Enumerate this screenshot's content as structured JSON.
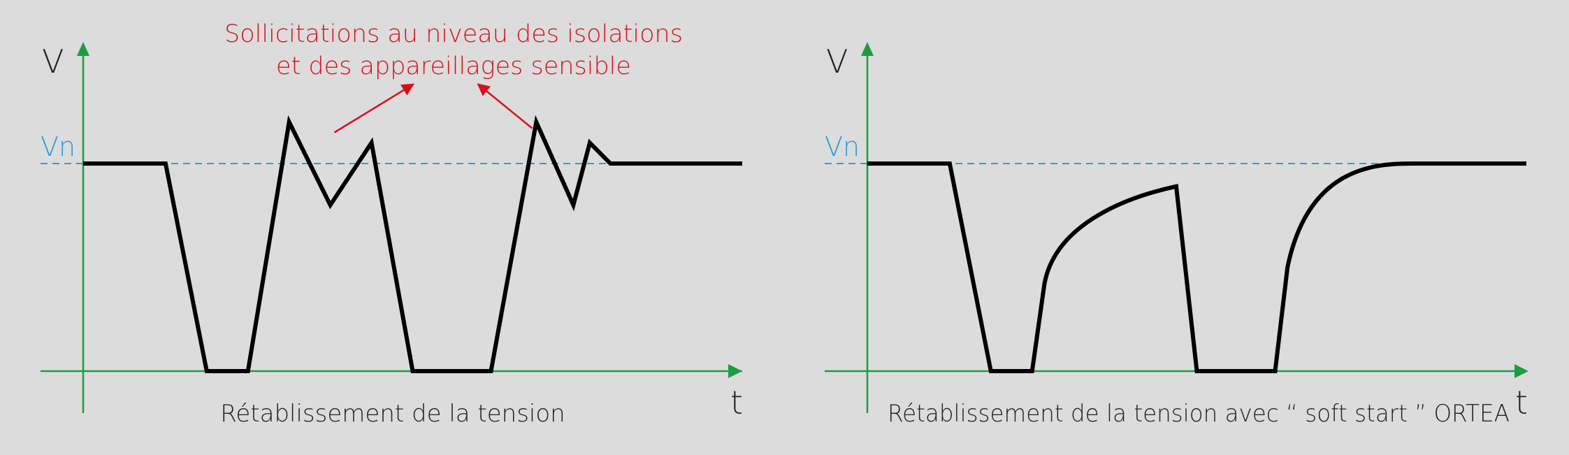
{
  "colors": {
    "background": "#dcdcdc",
    "axis": "#1a9e3f",
    "reference_line": "#2a9fd6",
    "signal": "#000000",
    "annotation": "#d8101e",
    "text": "#222222"
  },
  "chart_data": [
    {
      "type": "line",
      "id": "left",
      "ylabel": "V",
      "xlabel": "t",
      "reference_label": "Vn",
      "reference_value": 1.0,
      "caption": "Rétablissement de la tension",
      "xlim": [
        0,
        16
      ],
      "ylim": [
        0,
        1.55
      ],
      "segments": [
        {
          "shape": "line",
          "points": [
            [
              0,
              1.0
            ],
            [
              2.0,
              1.0
            ],
            [
              3.0,
              0.0
            ],
            [
              4.0,
              0.0
            ],
            [
              5.0,
              1.2
            ],
            [
              6.0,
              0.8
            ],
            [
              7.0,
              1.1
            ],
            [
              8.0,
              0.0
            ],
            [
              9.9,
              0.0
            ],
            [
              11.0,
              1.2
            ],
            [
              11.9,
              0.8
            ],
            [
              12.3,
              1.1
            ],
            [
              12.8,
              1.0
            ],
            [
              16.0,
              1.0
            ]
          ]
        }
      ],
      "annotation": {
        "text_lines": [
          "Sollicitations au niveau des isolations",
          "et des appareillages sensible"
        ],
        "arrows": [
          {
            "from": [
              6.1,
              1.15
            ],
            "to": [
              8.0,
              1.38
            ]
          },
          {
            "from": [
              10.9,
              1.17
            ],
            "to": [
              9.6,
              1.38
            ]
          }
        ]
      }
    },
    {
      "type": "line",
      "id": "right",
      "ylabel": "V",
      "xlabel": "t",
      "reference_label": "Vn",
      "reference_value": 1.0,
      "caption": "Rétablissement de la tension avec “ soft start ” ORTEA",
      "xlim": [
        0,
        16
      ],
      "ylim": [
        0,
        1.55
      ],
      "segments": [
        {
          "shape": "line",
          "points": [
            [
              0,
              1.0
            ],
            [
              2.0,
              1.0
            ],
            [
              3.0,
              0.0
            ],
            [
              4.0,
              0.0
            ],
            [
              4.3,
              0.42
            ]
          ]
        },
        {
          "shape": "curve",
          "points": [
            [
              4.3,
              0.42
            ],
            [
              4.6,
              0.75
            ],
            [
              6.8,
              0.86
            ],
            [
              7.5,
              0.89
            ]
          ]
        },
        {
          "shape": "line",
          "points": [
            [
              7.5,
              0.89
            ],
            [
              8.0,
              0.0
            ],
            [
              9.9,
              0.0
            ],
            [
              10.2,
              0.5
            ]
          ]
        },
        {
          "shape": "curve",
          "points": [
            [
              10.2,
              0.5
            ],
            [
              10.7,
              0.98
            ],
            [
              12.3,
              1.0
            ],
            [
              13.2,
              1.0
            ]
          ]
        },
        {
          "shape": "line",
          "points": [
            [
              13.2,
              1.0
            ],
            [
              16.0,
              1.0
            ]
          ]
        }
      ]
    }
  ]
}
